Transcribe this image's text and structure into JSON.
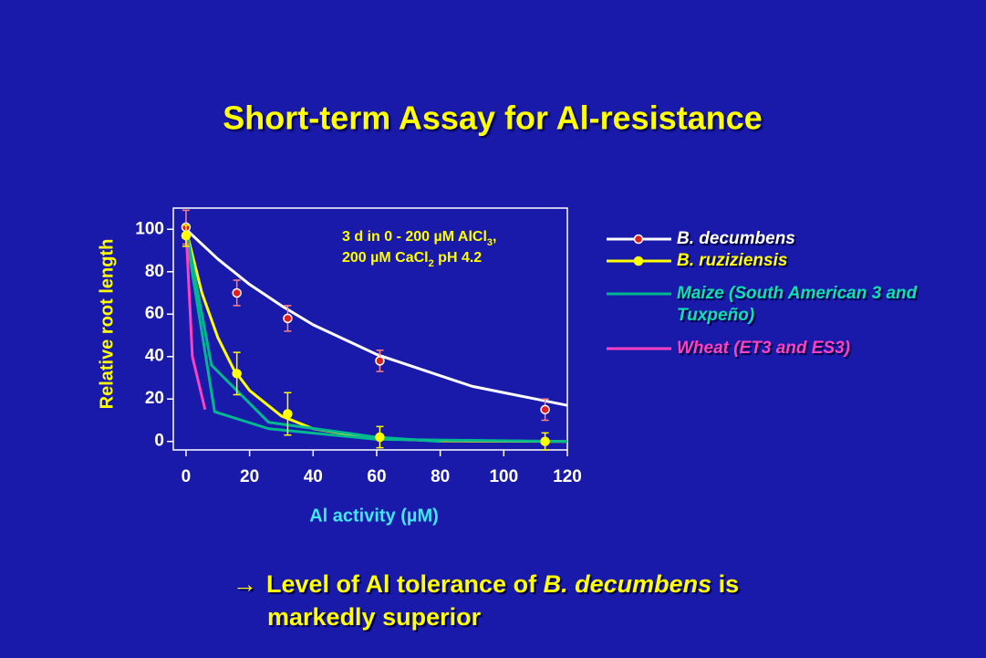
{
  "chart_data": {
    "type": "line",
    "title": "Short-term Assay for Al-resistance",
    "xlabel": "Al activity (µM)",
    "ylabel": "Relative root length",
    "xlim": [
      -4,
      120
    ],
    "ylim": [
      -4,
      110
    ],
    "xticks": [
      0,
      20,
      40,
      60,
      80,
      100,
      120
    ],
    "yticks": [
      0,
      20,
      40,
      60,
      80,
      100
    ],
    "annotation": [
      [
        "3 d in 0 - 200 µM AlCl",
        "3",
        ","
      ],
      [
        "200 µM CaCl",
        "2",
        " pH 4.2"
      ]
    ],
    "series": [
      {
        "name": "B. decumbens",
        "color": "#ffffff",
        "marker_color": "#e02020",
        "error_color": "#ff8080",
        "x": [
          0,
          16,
          32,
          61,
          113
        ],
        "values": [
          101,
          70,
          58,
          38,
          15
        ],
        "errors": [
          8,
          6,
          6,
          5,
          5
        ],
        "curves": [
          {
            "x": [
              0,
              10,
              20,
              30,
              40,
              50,
              60,
              70,
              80,
              90,
              100,
              110,
              120
            ],
            "values": [
              100,
              86,
              74,
              64,
              55,
              48,
              41,
              36,
              31,
              26,
              23,
              20,
              17
            ]
          }
        ]
      },
      {
        "name": "B. ruziziensis",
        "color": "#ffff00",
        "marker_color": "#ffff00",
        "error_color": "#ffff00",
        "x": [
          0,
          16,
          32,
          61,
          113
        ],
        "values": [
          97,
          32,
          13,
          2,
          0
        ],
        "errors": [
          5,
          10,
          10,
          5,
          4
        ],
        "curves": [
          {
            "x": [
              0,
              5,
              10,
              15,
              20,
              30,
              40,
              60,
              80,
              120
            ],
            "values": [
              100,
              70,
              49,
              34,
              24,
              12,
              6,
              1.4,
              0.3,
              0
            ]
          }
        ]
      },
      {
        "name": "Maize (South American 3 and Tuxpeño)",
        "color": "#00b890",
        "curves": [
          {
            "x": [
              0,
              8,
              26,
              60,
              80
            ],
            "values": [
              100,
              36,
              9,
              2,
              0
            ]
          },
          {
            "x": [
              0,
              9,
              26,
              60,
              120
            ],
            "values": [
              98,
              14,
              6,
              1,
              0
            ]
          }
        ]
      },
      {
        "name": "Wheat (ET3 and ES3)",
        "color": "#ff40c0",
        "curves": [
          {
            "x": [
              0,
              2,
              6
            ],
            "values": [
              100,
              40,
              15
            ]
          }
        ]
      }
    ],
    "conclusion": [
      "→",
      "Level of Al tolerance of ",
      "B. decumbens",
      " is",
      "markedly superior"
    ]
  }
}
